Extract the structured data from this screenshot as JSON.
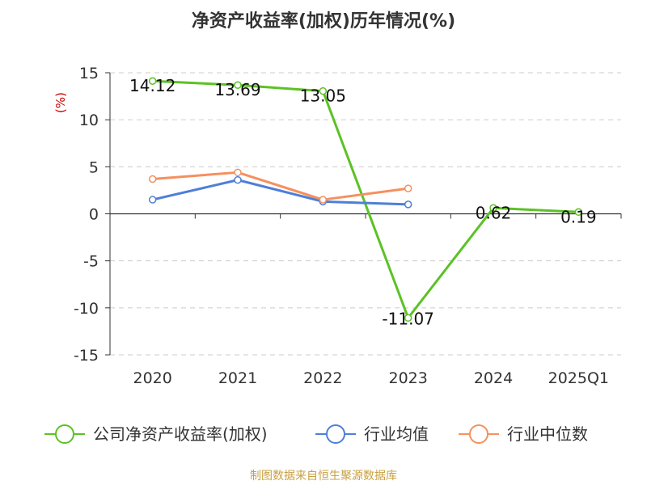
{
  "title": "净资产收益率(加权)历年情况(%)",
  "source": "制图数据来自恒生聚源数据库",
  "colors": {
    "company": "#5bc225",
    "industry_avg": "#4e7fd8",
    "industry_median": "#f5905e",
    "unit": "#cc0000",
    "source": "#c8a040"
  },
  "chart_data": {
    "type": "line",
    "title": "净资产收益率(加权)历年情况(%)",
    "ylabel": "(%)",
    "xlabel": "",
    "categories": [
      "2020",
      "2021",
      "2022",
      "2023",
      "2024",
      "2025Q1"
    ],
    "ylim": [
      -15,
      15
    ],
    "yticks": [
      15,
      10,
      5,
      0,
      -5,
      -10,
      -15
    ],
    "ytick_labels": [
      "15",
      "10",
      "5",
      "0",
      "-5",
      "-10",
      "-15"
    ],
    "grid": true,
    "legend_position": "bottom",
    "series": [
      {
        "name": "公司净资产收益率(加权)",
        "color": "#5bc225",
        "values": [
          14.12,
          13.69,
          13.05,
          -11.07,
          0.62,
          0.19
        ],
        "labels": [
          "14.12",
          "13.69",
          "13.05",
          "-11.07",
          "0.62",
          "0.19"
        ]
      },
      {
        "name": "行业均值",
        "color": "#4e7fd8",
        "values": [
          1.5,
          3.6,
          1.3,
          1.0,
          null,
          null
        ]
      },
      {
        "name": "行业中位数",
        "color": "#f5905e",
        "values": [
          3.7,
          4.4,
          1.5,
          2.7,
          null,
          null
        ]
      }
    ]
  }
}
